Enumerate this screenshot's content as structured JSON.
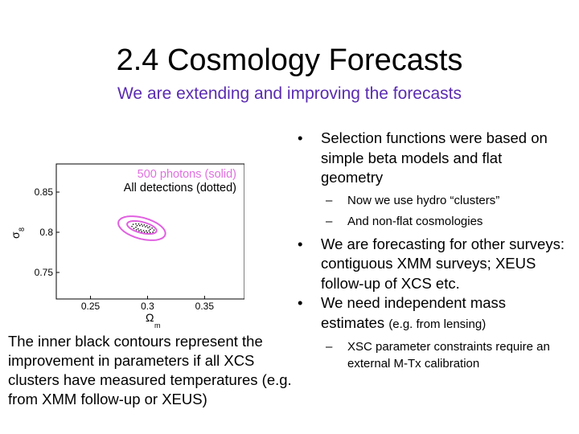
{
  "slide": {
    "title": "2.4 Cosmology Forecasts",
    "subtitle": "We are extending and improving the forecasts",
    "caption": "The inner black contours represent the improvement in parameters if all XCS clusters have measured temperatures (e.g. from XMM follow-up or XEUS)"
  },
  "bullets": [
    {
      "text": "Selection functions were based on simple beta models and flat geometry",
      "sub": [
        "Now we use hydro “clusters”",
        "And non-flat cosmologies"
      ]
    },
    {
      "text": "We are forecasting for other surveys: contiguous XMM surveys; XEUS follow-up of XCS etc.",
      "sub": []
    },
    {
      "text_main": "We need independent mass estimates",
      "text_small": "(e.g. from lensing)",
      "sub": [
        "XSC parameter constraints require an external M-Tx calibration"
      ]
    }
  ],
  "chart_data": {
    "type": "contour",
    "xlabel": "Ω",
    "xlabel_sub": "m",
    "ylabel": "σ",
    "ylabel_sub": "8",
    "x_ticks": [
      "0.25",
      "0.3",
      "0.35"
    ],
    "y_ticks": [
      "0.85",
      "0.8",
      "0.75"
    ],
    "xlim": [
      0.22,
      0.385
    ],
    "ylim": [
      0.717,
      0.885
    ],
    "legend": {
      "solid": "500 photons (solid)",
      "dotted": "All detections (dotted)"
    },
    "colors": {
      "solid": "#e060e0",
      "dotted": "#000000",
      "legend_solid": "#e070e0"
    },
    "contours": [
      {
        "style": "solid",
        "center": [
          0.295,
          0.805
        ],
        "a": 0.12,
        "b": 0.0135,
        "angle": -0.3
      },
      {
        "style": "solid",
        "center": [
          0.295,
          0.806
        ],
        "a": 0.075,
        "b": 0.007,
        "angle": -0.3
      },
      {
        "style": "dotted",
        "center": [
          0.296,
          0.805
        ],
        "a": 0.057,
        "b": 0.0045,
        "angle": -0.3
      },
      {
        "style": "dotted",
        "center": [
          0.296,
          0.805
        ],
        "a": 0.038,
        "b": 0.0027,
        "angle": -0.3
      }
    ]
  }
}
